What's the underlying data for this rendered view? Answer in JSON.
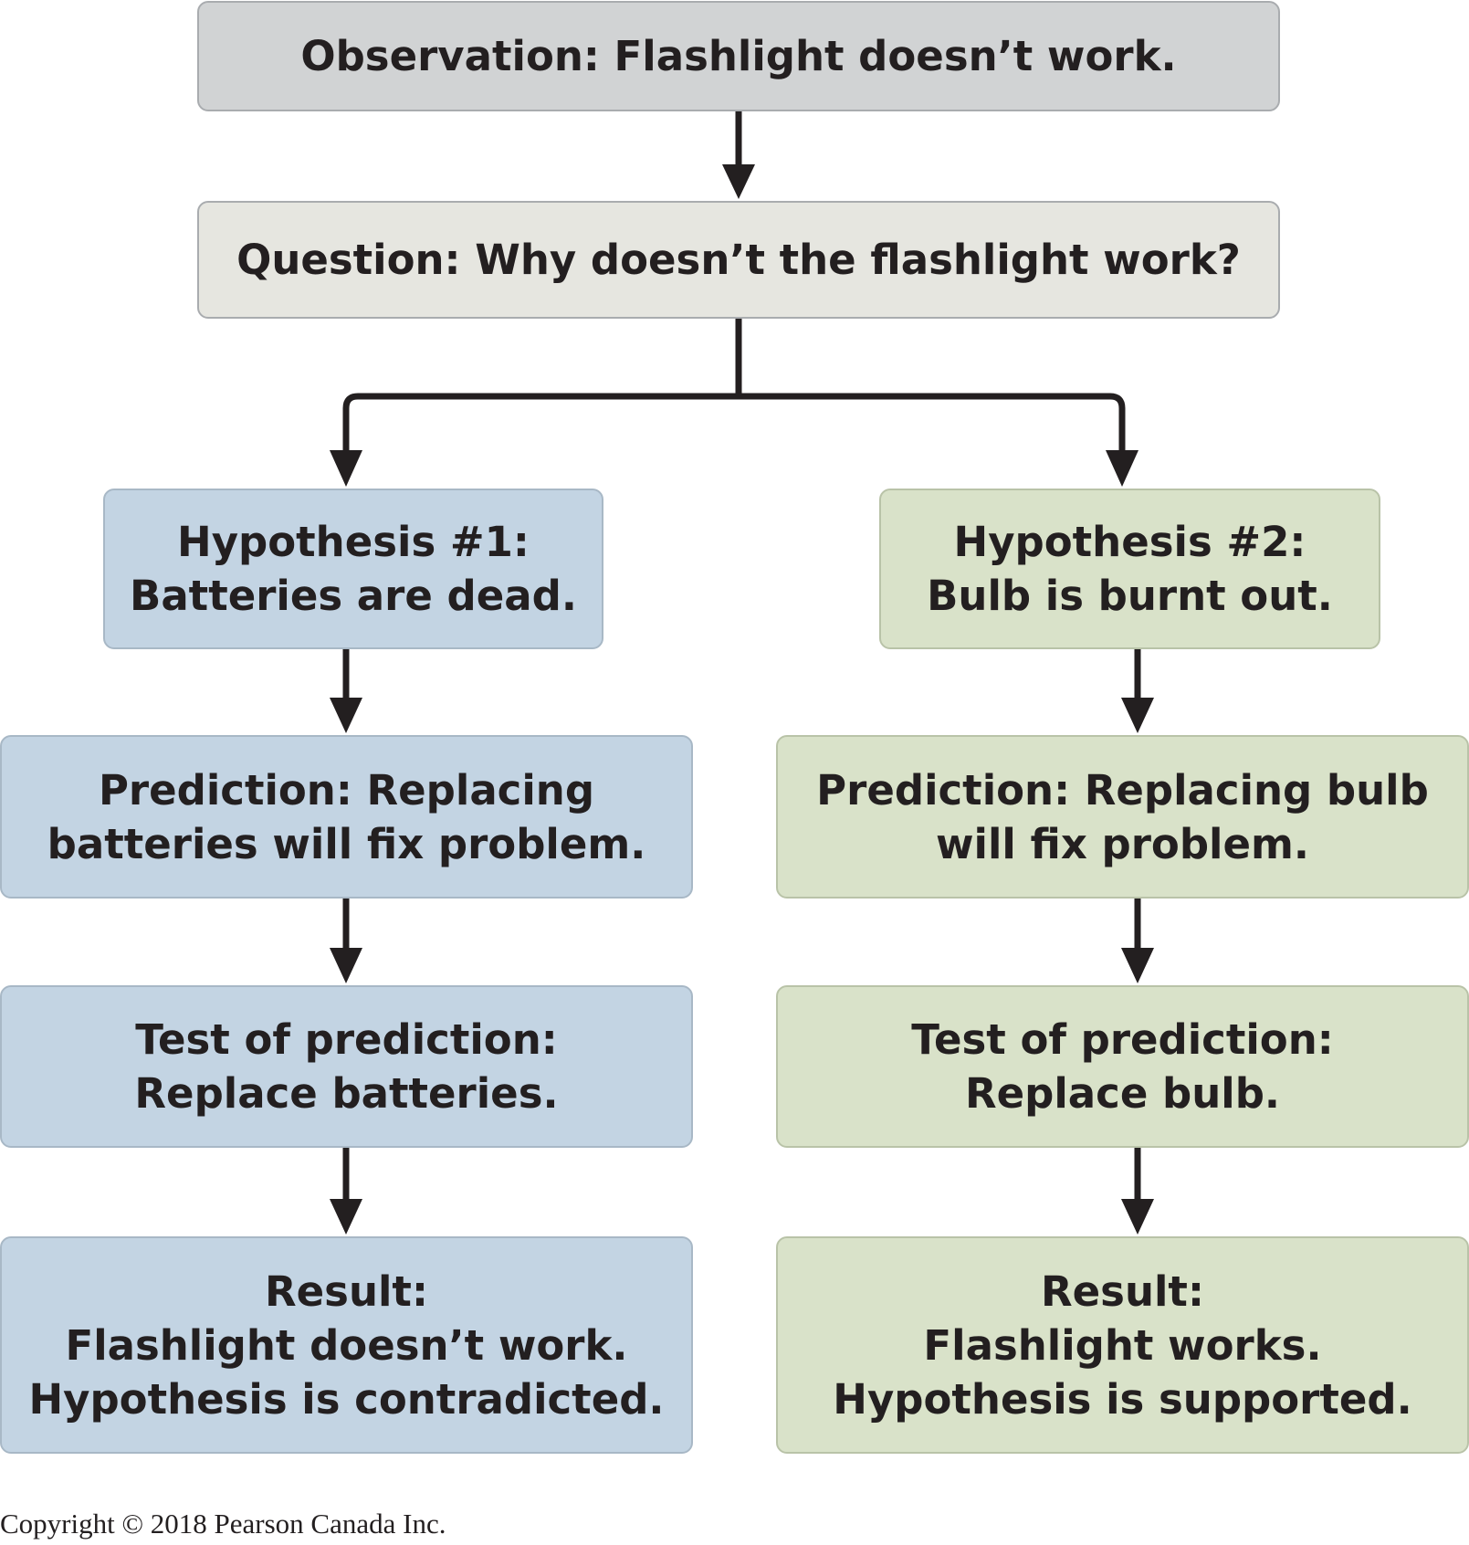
{
  "observation": {
    "lines": [
      "Observation: Flashlight doesn’t work."
    ]
  },
  "question": {
    "lines": [
      "Question: Why doesn’t the flashlight work?"
    ]
  },
  "branch_1": {
    "hypothesis": {
      "lines": [
        "Hypothesis #1:",
        "Batteries are dead."
      ]
    },
    "prediction": {
      "lines": [
        "Prediction: Replacing",
        "batteries will fix problem."
      ]
    },
    "test": {
      "lines": [
        "Test of prediction:",
        "Replace batteries."
      ]
    },
    "result": {
      "lines": [
        "Result:",
        "Flashlight doesn’t work.",
        "Hypothesis is contradicted."
      ]
    }
  },
  "branch_2": {
    "hypothesis": {
      "lines": [
        "Hypothesis #2:",
        "Bulb is burnt out."
      ]
    },
    "prediction": {
      "lines": [
        "Prediction: Replacing bulb",
        "will fix problem."
      ]
    },
    "test": {
      "lines": [
        "Test of prediction:",
        "Replace bulb."
      ]
    },
    "result": {
      "lines": [
        "Result:",
        "Flashlight works.",
        "Hypothesis is supported."
      ]
    }
  },
  "copyright": "Copyright © 2018 Pearson Canada Inc.",
  "colors": {
    "observation_fill": "#d1d3d4",
    "question_fill": "#e6e6e0",
    "branch_1_fill": "#c3d4e3",
    "branch_2_fill": "#d9e2c9",
    "arrow": "#231f20",
    "text": "#231f20"
  }
}
